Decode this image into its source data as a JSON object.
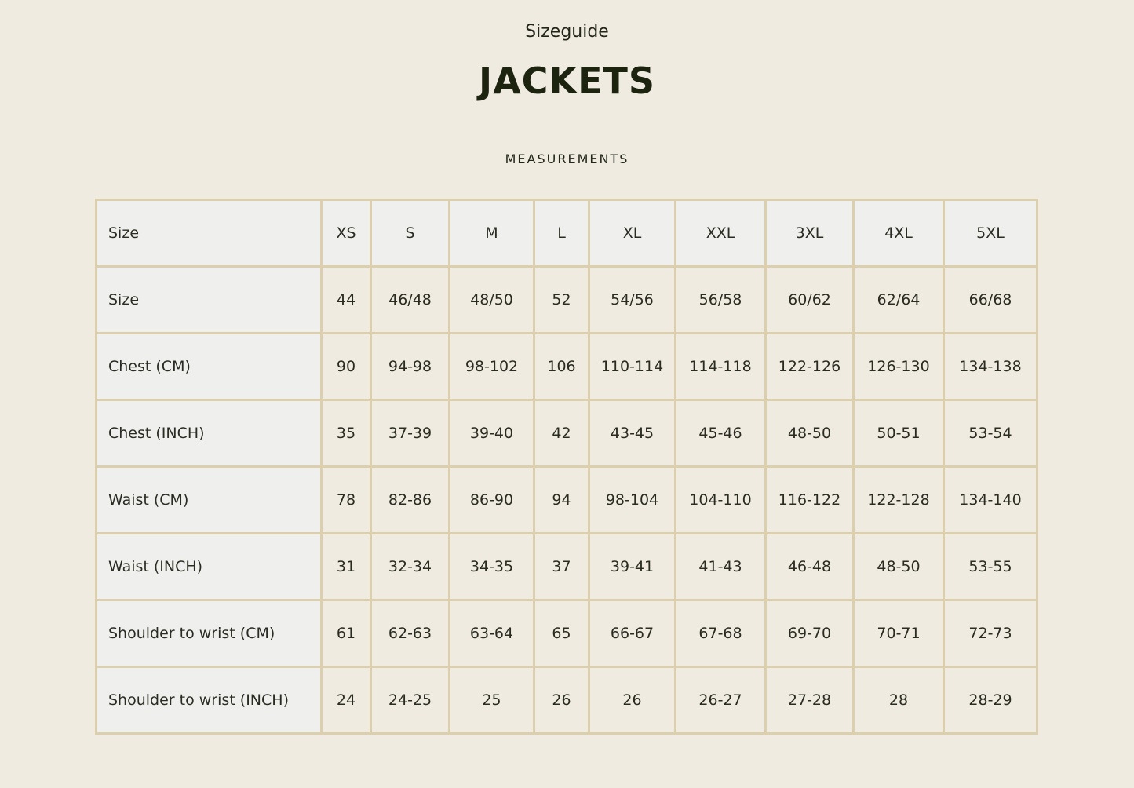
{
  "header": {
    "subtitle": "Sizeguide",
    "title": "JACKETS",
    "section": "MEASUREMENTS"
  },
  "table": {
    "columns": [
      "Size",
      "XS",
      "S",
      "M",
      "L",
      "XL",
      "XXL",
      "3XL",
      "4XL",
      "5XL"
    ],
    "rows": [
      {
        "label": "Size",
        "values": [
          "44",
          "46/48",
          "48/50",
          "52",
          "54/56",
          "56/58",
          "60/62",
          "62/64",
          "66/68"
        ]
      },
      {
        "label": "Chest (CM)",
        "values": [
          "90",
          "94-98",
          "98-102",
          "106",
          "110-114",
          "114-118",
          "122-126",
          "126-130",
          "134-138"
        ]
      },
      {
        "label": "Chest (INCH)",
        "values": [
          "35",
          "37-39",
          "39-40",
          "42",
          "43-45",
          "45-46",
          "48-50",
          "50-51",
          "53-54"
        ]
      },
      {
        "label": "Waist (CM)",
        "values": [
          "78",
          "82-86",
          "86-90",
          "94",
          "98-104",
          "104-110",
          "116-122",
          "122-128",
          "134-140"
        ]
      },
      {
        "label": "Waist (INCH)",
        "values": [
          "31",
          "32-34",
          "34-35",
          "37",
          "39-41",
          "41-43",
          "46-48",
          "48-50",
          "53-55"
        ]
      },
      {
        "label": "Shoulder to wrist (CM)",
        "values": [
          "61",
          "62-63",
          "63-64",
          "65",
          "66-67",
          "67-68",
          "69-70",
          "70-71",
          "72-73"
        ]
      },
      {
        "label": "Shoulder to wrist (INCH)",
        "values": [
          "24",
          "24-25",
          "25",
          "26",
          "26",
          "26-27",
          "27-28",
          "28",
          "28-29"
        ]
      }
    ]
  }
}
